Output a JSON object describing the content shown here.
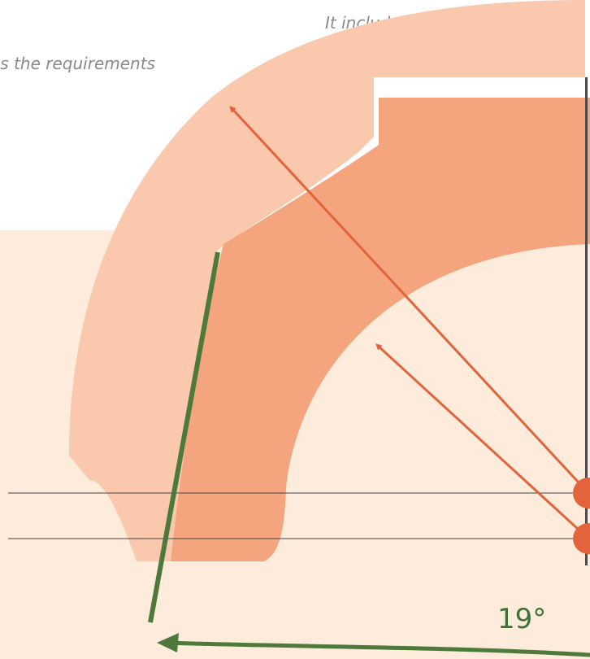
{
  "captions": {
    "line1": "It includes many options",
    "line2": "es the requirements"
  },
  "angle_label": "19°",
  "colors": {
    "background_panel": "#fdebdb",
    "outer_band": "#fac8ad",
    "inner_band": "#f4a57e",
    "arrow": "#e3643a",
    "green_line": "#4d7a3a",
    "horizontal_rule": "#444444"
  }
}
